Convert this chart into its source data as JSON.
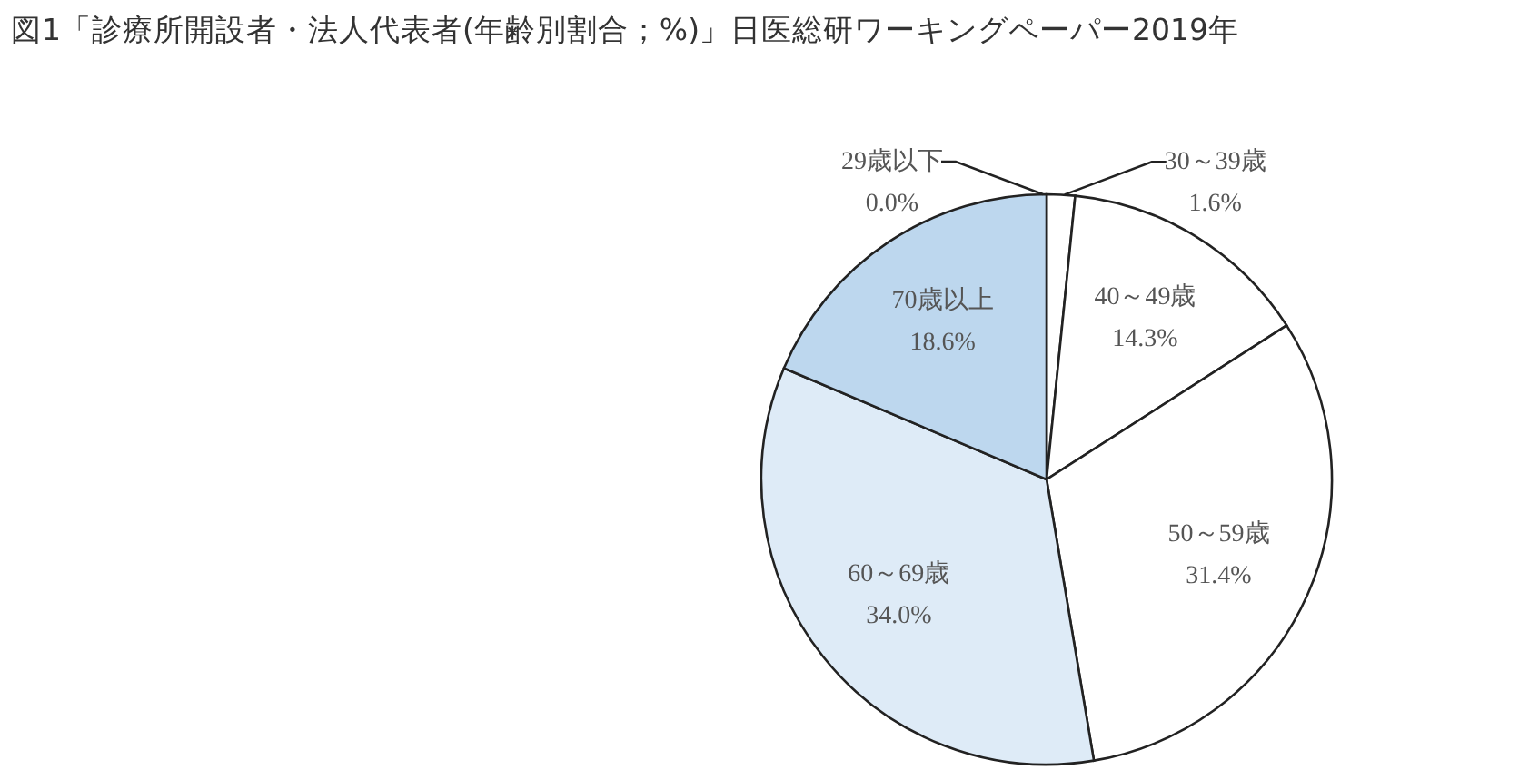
{
  "chart_data": {
    "type": "pie",
    "title": "図1「診療所開設者・法人代表者(年齢別割合；%)」日医総研ワーキングペーパー2019年",
    "categories": [
      "29歳以下",
      "30～39歳",
      "40～49歳",
      "50～59歳",
      "60～69歳",
      "70歳以上"
    ],
    "values": [
      0.0,
      1.6,
      14.3,
      31.4,
      34.0,
      18.6
    ],
    "colors": [
      "#ffffff",
      "#ffffff",
      "#ffffff",
      "#ffffff",
      "#deebf7",
      "#bdd7ee"
    ],
    "value_labels": [
      "0.0%",
      "1.6%",
      "14.3%",
      "31.4%",
      "34.0%",
      "18.6%"
    ]
  }
}
